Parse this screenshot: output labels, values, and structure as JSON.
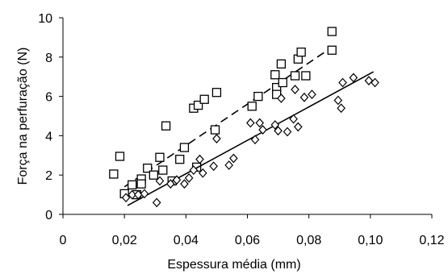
{
  "chart_data": {
    "type": "scatter",
    "xlabel": "Espessura média (mm)",
    "ylabel": "Força na perfuração (N)",
    "xlim": [
      0,
      0.12
    ],
    "ylim": [
      0,
      10
    ],
    "x_ticks": [
      "0",
      "0,02",
      "0,04",
      "0,06",
      "0,08",
      "0,10",
      "0,12"
    ],
    "y_ticks": [
      "0",
      "2",
      "4",
      "6",
      "8",
      "10"
    ],
    "grid": false,
    "legend": "none",
    "series": [
      {
        "marker": "square",
        "color": "#000000",
        "points": [
          [
            0.0165,
            2.05
          ],
          [
            0.0185,
            2.95
          ],
          [
            0.02,
            1.05
          ],
          [
            0.0225,
            1.5
          ],
          [
            0.024,
            1.0
          ],
          [
            0.0255,
            1.8
          ],
          [
            0.0255,
            1.55
          ],
          [
            0.0275,
            2.35
          ],
          [
            0.0295,
            2.0
          ],
          [
            0.0315,
            2.9
          ],
          [
            0.0325,
            2.25
          ],
          [
            0.0335,
            4.5
          ],
          [
            0.0355,
            1.7
          ],
          [
            0.038,
            2.8
          ],
          [
            0.0395,
            3.4
          ],
          [
            0.0425,
            5.4
          ],
          [
            0.0435,
            2.4
          ],
          [
            0.044,
            5.55
          ],
          [
            0.046,
            5.85
          ],
          [
            0.0495,
            4.3
          ],
          [
            0.05,
            6.2
          ],
          [
            0.0615,
            5.5
          ],
          [
            0.0635,
            6.0
          ],
          [
            0.069,
            7.1
          ],
          [
            0.0695,
            6.45
          ],
          [
            0.0695,
            6.1
          ],
          [
            0.071,
            7.65
          ],
          [
            0.0715,
            6.7
          ],
          [
            0.0755,
            7.05
          ],
          [
            0.0765,
            7.9
          ],
          [
            0.0775,
            8.25
          ],
          [
            0.079,
            7.05
          ],
          [
            0.0875,
            8.35
          ],
          [
            0.0875,
            9.3
          ]
        ],
        "trendline": {
          "style": "dashed",
          "x_range": [
            0.02,
            0.088
          ],
          "y_range": [
            1.4,
            8.55
          ]
        }
      },
      {
        "marker": "diamond",
        "color": "#000000",
        "points": [
          [
            0.0205,
            0.85
          ],
          [
            0.0225,
            1.0
          ],
          [
            0.0245,
            1.0
          ],
          [
            0.0265,
            1.05
          ],
          [
            0.0305,
            0.6
          ],
          [
            0.0315,
            1.7
          ],
          [
            0.035,
            1.55
          ],
          [
            0.037,
            1.75
          ],
          [
            0.0395,
            1.55
          ],
          [
            0.041,
            1.85
          ],
          [
            0.0425,
            2.25
          ],
          [
            0.0445,
            2.8
          ],
          [
            0.0455,
            2.1
          ],
          [
            0.049,
            2.45
          ],
          [
            0.05,
            3.85
          ],
          [
            0.054,
            2.5
          ],
          [
            0.0555,
            2.85
          ],
          [
            0.061,
            4.65
          ],
          [
            0.0625,
            3.8
          ],
          [
            0.064,
            4.65
          ],
          [
            0.065,
            4.3
          ],
          [
            0.069,
            4.55
          ],
          [
            0.07,
            4.25
          ],
          [
            0.071,
            5.9
          ],
          [
            0.073,
            4.2
          ],
          [
            0.075,
            4.85
          ],
          [
            0.0755,
            6.35
          ],
          [
            0.0765,
            4.45
          ],
          [
            0.0785,
            5.95
          ],
          [
            0.081,
            6.1
          ],
          [
            0.0895,
            5.8
          ],
          [
            0.0905,
            5.4
          ],
          [
            0.091,
            6.7
          ],
          [
            0.0945,
            6.95
          ],
          [
            0.0995,
            6.8
          ],
          [
            0.1015,
            6.7
          ]
        ],
        "trendline": {
          "style": "solid",
          "x_range": [
            0.021,
            0.101
          ],
          "y_range": [
            0.45,
            7.25
          ]
        }
      }
    ]
  }
}
